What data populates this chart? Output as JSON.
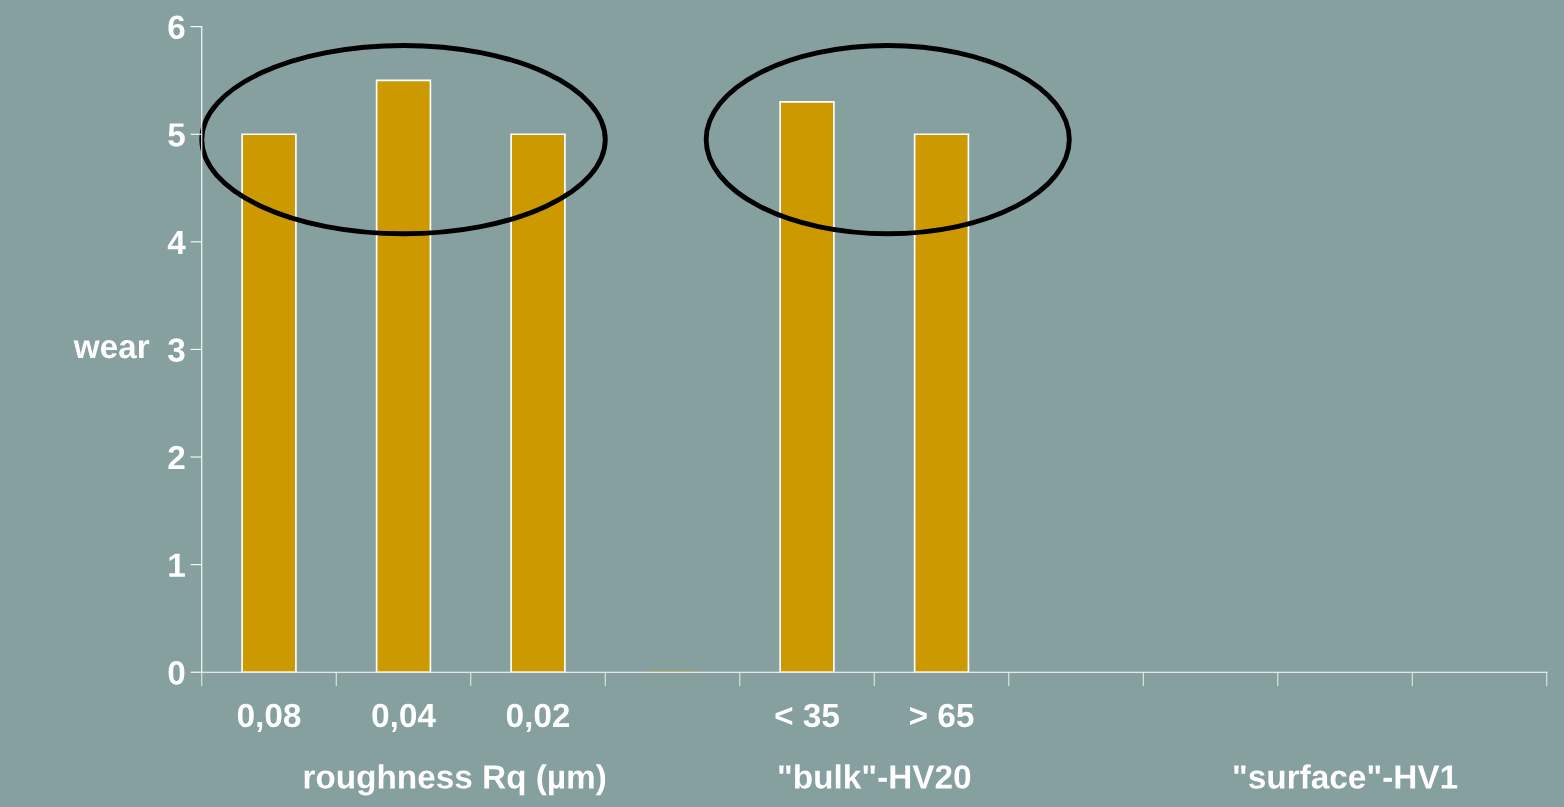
{
  "chart_data": {
    "type": "bar",
    "ylabel": "wear",
    "categories": [
      "0,08",
      "0,04",
      "0,02",
      null,
      "< 35",
      "> 65",
      null,
      null,
      null,
      null
    ],
    "values": [
      5.0,
      5.5,
      5.0,
      0,
      5.3,
      5.0,
      null,
      null,
      null,
      null
    ],
    "color": "#cc9900",
    "ylim": [
      0,
      6
    ],
    "yticks": [
      0,
      1,
      2,
      3,
      4,
      5,
      6
    ],
    "grid": false,
    "annotations": [
      "roughness Rq (µm)",
      "\"bulk\"-HV20",
      "\"surface\"-HV1"
    ]
  }
}
